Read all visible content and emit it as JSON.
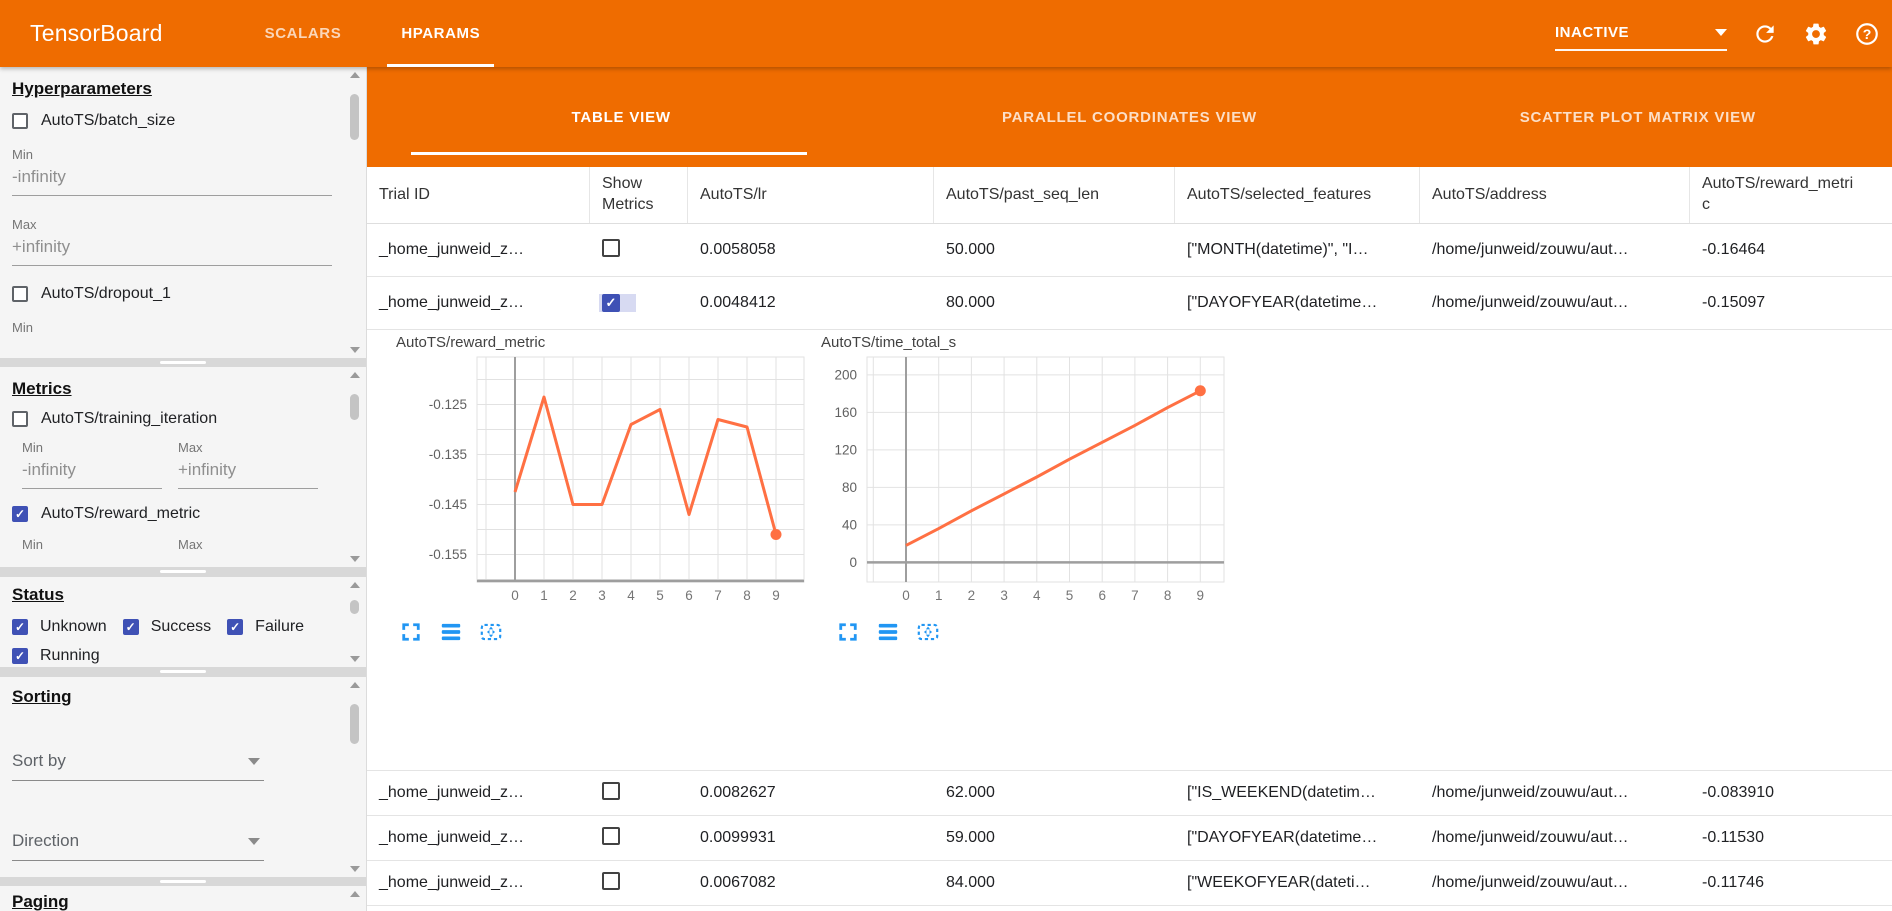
{
  "colors": {
    "accent_orange": "#EF6C00",
    "checkbox_indigo": "#3F51B5",
    "chart_line_orange": "#FF7043",
    "tool_icon_blue": "#2196F3"
  },
  "app_bar": {
    "title": "TensorBoard",
    "nav_tabs": [
      {
        "label": "SCALARS",
        "active": false
      },
      {
        "label": "HPARAMS",
        "active": true
      }
    ],
    "run_selector_value": "INACTIVE",
    "icons": [
      "dropdown-caret-icon",
      "refresh-icon",
      "settings-gear-icon",
      "help-icon"
    ]
  },
  "sidebar": {
    "hyperparameters": {
      "title": "Hyperparameters",
      "batch_size_label": "AutoTS/batch_size",
      "batch_size_checked": false,
      "min_label": "Min",
      "min_value": "-infinity",
      "max_label": "Max",
      "max_value": "+infinity",
      "dropout_label": "AutoTS/dropout_1",
      "dropout_checked": false,
      "dropout_min_label": "Min"
    },
    "metrics": {
      "title": "Metrics",
      "training_iteration_label": "AutoTS/training_iteration",
      "training_iteration_checked": false,
      "min_label": "Min",
      "min_value": "-infinity",
      "max_label": "Max",
      "max_value": "+infinity",
      "reward_metric_label": "AutoTS/reward_metric",
      "reward_metric_checked": true,
      "reward_min_label": "Min",
      "reward_max_label": "Max"
    },
    "status": {
      "title": "Status",
      "options": [
        {
          "label": "Unknown",
          "checked": true
        },
        {
          "label": "Success",
          "checked": true
        },
        {
          "label": "Failure",
          "checked": true
        },
        {
          "label": "Running",
          "checked": true
        }
      ]
    },
    "sorting": {
      "title": "Sorting",
      "sort_by_label": "Sort by",
      "direction_label": "Direction"
    },
    "paging": {
      "title": "Paging"
    }
  },
  "main": {
    "view_tabs": [
      {
        "label": "TABLE VIEW",
        "active": true
      },
      {
        "label": "PARALLEL COORDINATES VIEW",
        "active": false
      },
      {
        "label": "SCATTER PLOT MATRIX VIEW",
        "active": false
      }
    ],
    "table": {
      "columns": [
        "Trial ID",
        "Show Metrics",
        "AutoTS/lr",
        "AutoTS/past_seq_len",
        "AutoTS/selected_features",
        "AutoTS/address",
        "AutoTS/reward_metric"
      ],
      "rows": [
        {
          "trial_id": "_home_junweid_z…",
          "show_metrics": false,
          "lr": "0.0058058",
          "past_seq_len": "50.000",
          "selected_features": "[\"MONTH(datetime)\", \"I…",
          "address": "/home/junweid/zouwu/aut…",
          "reward_metric": "-0.16464"
        },
        {
          "trial_id": "_home_junweid_z…",
          "show_metrics": true,
          "lr": "0.0048412",
          "past_seq_len": "80.000",
          "selected_features": "[\"DAYOFYEAR(datetime…",
          "address": "/home/junweid/zouwu/aut…",
          "reward_metric": "-0.15097"
        },
        {
          "trial_id": "_home_junweid_z…",
          "show_metrics": false,
          "lr": "0.0082627",
          "past_seq_len": "62.000",
          "selected_features": "[\"IS_WEEKEND(datetim…",
          "address": "/home/junweid/zouwu/aut…",
          "reward_metric": "-0.083910"
        },
        {
          "trial_id": "_home_junweid_z…",
          "show_metrics": false,
          "lr": "0.0099931",
          "past_seq_len": "59.000",
          "selected_features": "[\"DAYOFYEAR(datetime…",
          "address": "/home/junweid/zouwu/aut…",
          "reward_metric": "-0.11530"
        },
        {
          "trial_id": "_home_junweid_z…",
          "show_metrics": false,
          "lr": "0.0067082",
          "past_seq_len": "84.000",
          "selected_features": "[\"WEEKOFYEAR(dateti…",
          "address": "/home/junweid/zouwu/aut…",
          "reward_metric": "-0.11746"
        }
      ]
    }
  },
  "chart_data": [
    {
      "type": "line",
      "title": "AutoTS/reward_metric",
      "x": [
        0,
        1,
        2,
        3,
        4,
        5,
        6,
        7,
        8,
        9
      ],
      "values": [
        -0.1425,
        -0.1235,
        -0.145,
        -0.145,
        -0.129,
        -0.126,
        -0.147,
        -0.128,
        -0.1295,
        -0.151
      ],
      "y_labels": [
        {
          "v": -0.125,
          "t": "-0.125"
        },
        {
          "v": -0.135,
          "t": "-0.135"
        },
        {
          "v": -0.145,
          "t": "-0.145"
        },
        {
          "v": -0.155,
          "t": "-0.155"
        }
      ],
      "grid_y": [
        -0.16,
        -0.155,
        -0.15,
        -0.145,
        -0.14,
        -0.135,
        -0.13,
        -0.125,
        -0.12
      ],
      "ylim": [
        -0.1605,
        -0.1155
      ],
      "line_color": "#FF7043",
      "end_marker": true,
      "baseline": "bottom",
      "legend": null
    },
    {
      "type": "line",
      "title": "AutoTS/time_total_s",
      "x": [
        0,
        1,
        2,
        3,
        4,
        5,
        6,
        7,
        8,
        9
      ],
      "values": [
        18,
        36,
        55,
        73,
        91,
        110,
        128,
        146,
        165,
        183
      ],
      "y_labels": [
        {
          "v": 200,
          "t": "200"
        },
        {
          "v": 160,
          "t": "160"
        },
        {
          "v": 120,
          "t": "120"
        },
        {
          "v": 80,
          "t": "80"
        },
        {
          "v": 40,
          "t": "40"
        },
        {
          "v": 0,
          "t": "0"
        }
      ],
      "grid_y": [
        0,
        40,
        80,
        120,
        160,
        200
      ],
      "ylim": [
        -21,
        219
      ],
      "line_color": "#FF7043",
      "end_marker": true,
      "baseline": 0,
      "legend": null
    }
  ]
}
